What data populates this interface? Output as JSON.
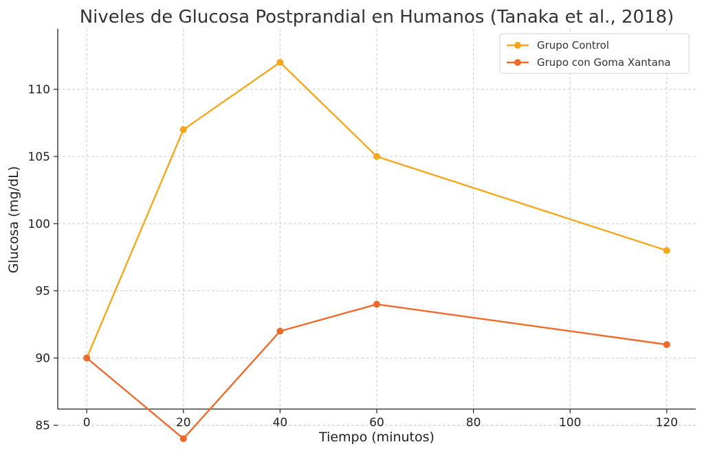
{
  "chart_data": {
    "type": "line",
    "title": "Niveles de Glucosa Postprandial en Humanos (Tanaka et al., 2018)",
    "xlabel": "Tiempo (minutos)",
    "ylabel": "Glucosa (mg/dL)",
    "x": [
      0,
      20,
      40,
      60,
      120
    ],
    "xlim": [
      -6,
      126
    ],
    "ylim": [
      86.2,
      114.5
    ],
    "xticks": [
      0,
      20,
      40,
      60,
      80,
      100,
      120
    ],
    "yticks": [
      85,
      90,
      95,
      100,
      105,
      110
    ],
    "xtick_labels": [
      "0",
      "20",
      "40",
      "60",
      "80",
      "100",
      "120"
    ],
    "ytick_labels": [
      "85",
      "90",
      "95",
      "100",
      "105",
      "110"
    ],
    "grid": true,
    "legend_position": "top-right",
    "series": [
      {
        "name": "Grupo Control",
        "color": "#F5A71B",
        "values": [
          90,
          107,
          112,
          105,
          98
        ]
      },
      {
        "name": "Grupo con Goma Xantana",
        "color": "#EE6A2A",
        "values": [
          90,
          84,
          92,
          94,
          91
        ]
      }
    ]
  }
}
